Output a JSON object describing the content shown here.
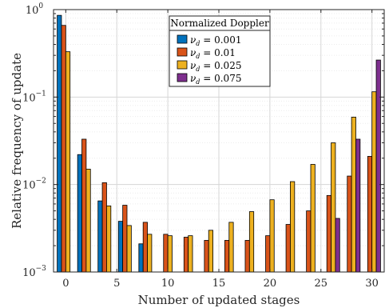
{
  "chart_data": {
    "type": "bar",
    "xlabel": "Number of updated stages",
    "ylabel": "Relative frequency of update",
    "yscale": "log",
    "ylim": [
      0.001,
      1
    ],
    "xlim": [
      -1.2,
      31.2
    ],
    "x_ticks": [
      0,
      5,
      10,
      15,
      20,
      25,
      30
    ],
    "y_ticks": [
      {
        "value": 0.001,
        "base": "10",
        "exp": "−3"
      },
      {
        "value": 0.01,
        "base": "10",
        "exp": "−2"
      },
      {
        "value": 0.1,
        "base": "10",
        "exp": "−1"
      },
      {
        "value": 1,
        "base": "10",
        "exp": "0"
      }
    ],
    "grid": true,
    "legend": {
      "title": "Normalized Doppler",
      "placement": "top-center",
      "items": [
        {
          "symbol": "ν",
          "subscript": "d",
          "value": "= 0.001"
        },
        {
          "symbol": "ν",
          "subscript": "d",
          "value": "= 0.01"
        },
        {
          "symbol": "ν",
          "subscript": "d",
          "value": "= 0.025"
        },
        {
          "symbol": "ν",
          "subscript": "d",
          "value": "= 0.075"
        }
      ]
    },
    "x": [
      0,
      2,
      4,
      6,
      8,
      10,
      12,
      14,
      16,
      18,
      20,
      22,
      24,
      26,
      28,
      30
    ],
    "series": [
      {
        "color": "#0072BD",
        "values": [
          0.86,
          0.022,
          0.0065,
          0.0038,
          0.0021,
          null,
          null,
          null,
          null,
          null,
          null,
          null,
          null,
          null,
          null,
          null
        ]
      },
      {
        "color": "#D95319",
        "values": [
          0.66,
          0.033,
          0.0105,
          0.0058,
          0.0037,
          0.0027,
          0.0025,
          0.0023,
          0.0023,
          0.0023,
          0.0026,
          0.0035,
          0.005,
          0.0075,
          0.0125,
          0.021
        ]
      },
      {
        "color": "#EDB120",
        "values": [
          0.33,
          0.015,
          0.0057,
          0.0034,
          0.0027,
          0.0026,
          0.0026,
          0.003,
          0.0037,
          0.0049,
          0.0067,
          0.0108,
          0.017,
          0.03,
          0.059,
          0.115
        ]
      },
      {
        "color": "#7E2F8E",
        "values": [
          null,
          null,
          null,
          null,
          null,
          null,
          null,
          null,
          null,
          null,
          null,
          null,
          null,
          0.0041,
          0.033,
          0.265
        ]
      }
    ]
  }
}
